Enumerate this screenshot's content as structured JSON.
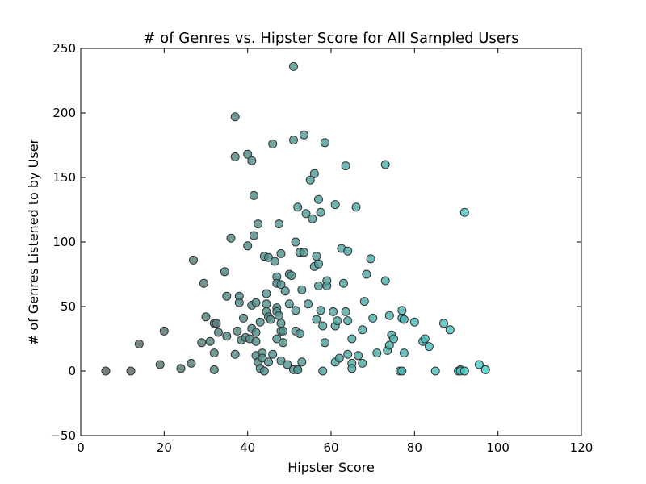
{
  "chart_data": {
    "type": "scatter",
    "title": "# of Genres vs. Hipster Score for All Sampled Users",
    "xlabel": "Hipster Score",
    "ylabel": "# of Genres Listened to by User",
    "xlim": [
      0,
      120
    ],
    "ylim": [
      -50,
      250
    ],
    "x_ticks": [
      0,
      20,
      40,
      60,
      80,
      100,
      120
    ],
    "y_ticks": [
      -50,
      0,
      50,
      100,
      150,
      200,
      250
    ],
    "x_tick_labels": [
      "0",
      "20",
      "40",
      "60",
      "80",
      "100",
      "120"
    ],
    "y_tick_labels": [
      "−50",
      "0",
      "50",
      "100",
      "150",
      "200",
      "250"
    ],
    "grid": false,
    "legend": "none",
    "colors": {
      "low": "#555f5c",
      "high": "#44ccc8",
      "edge": "#333333"
    },
    "points": [
      [
        6,
        0
      ],
      [
        12,
        0
      ],
      [
        14,
        21
      ],
      [
        19,
        5
      ],
      [
        20,
        31
      ],
      [
        24,
        2
      ],
      [
        26.5,
        6
      ],
      [
        27,
        86
      ],
      [
        29,
        22
      ],
      [
        29.5,
        68
      ],
      [
        30,
        42
      ],
      [
        31,
        23
      ],
      [
        32,
        14
      ],
      [
        32,
        1
      ],
      [
        32,
        37
      ],
      [
        32.5,
        37
      ],
      [
        33,
        30
      ],
      [
        34.5,
        77
      ],
      [
        35,
        58
      ],
      [
        35,
        27
      ],
      [
        36,
        103
      ],
      [
        37,
        197
      ],
      [
        37,
        166
      ],
      [
        37,
        13
      ],
      [
        37.5,
        31
      ],
      [
        38,
        58
      ],
      [
        38,
        53
      ],
      [
        38.5,
        24
      ],
      [
        39,
        41
      ],
      [
        39.5,
        26
      ],
      [
        40,
        97
      ],
      [
        40,
        168
      ],
      [
        40.5,
        25
      ],
      [
        41,
        163
      ],
      [
        41,
        51
      ],
      [
        41,
        33
      ],
      [
        41.5,
        136
      ],
      [
        41.5,
        105
      ],
      [
        42,
        53
      ],
      [
        42,
        12
      ],
      [
        42,
        30
      ],
      [
        42,
        23
      ],
      [
        42.5,
        114
      ],
      [
        42.5,
        7
      ],
      [
        43,
        38
      ],
      [
        43,
        2
      ],
      [
        43.5,
        14
      ],
      [
        43.5,
        10
      ],
      [
        44,
        89
      ],
      [
        44,
        0
      ],
      [
        44.5,
        46
      ],
      [
        44.5,
        60
      ],
      [
        44.5,
        52
      ],
      [
        45,
        88
      ],
      [
        45,
        42
      ],
      [
        45,
        7
      ],
      [
        45.5,
        40
      ],
      [
        46,
        176
      ],
      [
        46,
        13
      ],
      [
        46.5,
        85
      ],
      [
        47,
        73
      ],
      [
        47,
        68
      ],
      [
        47,
        49
      ],
      [
        47,
        46
      ],
      [
        47,
        25
      ],
      [
        47.5,
        114
      ],
      [
        47.5,
        43
      ],
      [
        48,
        91
      ],
      [
        48,
        67
      ],
      [
        48,
        37
      ],
      [
        48,
        31
      ],
      [
        48,
        8
      ],
      [
        48.5,
        31
      ],
      [
        48.5,
        22
      ],
      [
        49,
        62
      ],
      [
        49.5,
        5
      ],
      [
        50,
        75
      ],
      [
        50,
        52
      ],
      [
        50.5,
        74
      ],
      [
        51,
        236
      ],
      [
        51,
        179
      ],
      [
        51,
        1
      ],
      [
        51.5,
        100
      ],
      [
        51.5,
        47
      ],
      [
        51.5,
        31
      ],
      [
        52,
        127
      ],
      [
        52,
        1
      ],
      [
        52,
        1
      ],
      [
        52.5,
        92
      ],
      [
        52.5,
        29
      ],
      [
        53,
        63
      ],
      [
        53,
        7
      ],
      [
        53.5,
        183
      ],
      [
        53.5,
        92
      ],
      [
        54,
        122
      ],
      [
        54.5,
        52
      ],
      [
        55,
        148
      ],
      [
        55.5,
        118
      ],
      [
        56,
        153
      ],
      [
        56,
        81
      ],
      [
        56.5,
        89
      ],
      [
        56.5,
        40
      ],
      [
        57,
        133
      ],
      [
        57,
        83
      ],
      [
        57,
        66
      ],
      [
        57.5,
        47
      ],
      [
        57.5,
        123
      ],
      [
        58,
        35
      ],
      [
        58,
        0
      ],
      [
        58.5,
        177
      ],
      [
        58.5,
        22
      ],
      [
        59,
        70
      ],
      [
        59,
        66
      ],
      [
        60.5,
        46
      ],
      [
        61,
        129
      ],
      [
        61,
        35
      ],
      [
        61,
        7
      ],
      [
        61.5,
        39
      ],
      [
        62,
        10
      ],
      [
        62.5,
        95
      ],
      [
        63,
        68
      ],
      [
        63.5,
        46
      ],
      [
        63.5,
        159
      ],
      [
        64,
        39
      ],
      [
        64,
        93
      ],
      [
        64,
        13
      ],
      [
        65,
        25
      ],
      [
        65,
        6
      ],
      [
        65,
        2
      ],
      [
        66,
        127
      ],
      [
        66.5,
        12
      ],
      [
        67.5,
        32
      ],
      [
        67.5,
        6
      ],
      [
        68,
        54
      ],
      [
        68.5,
        75
      ],
      [
        69.5,
        87
      ],
      [
        70,
        41
      ],
      [
        71,
        14
      ],
      [
        73,
        160
      ],
      [
        73,
        70
      ],
      [
        73.5,
        16
      ],
      [
        74,
        43
      ],
      [
        74,
        20
      ],
      [
        74.5,
        28
      ],
      [
        75,
        25
      ],
      [
        76.5,
        0
      ],
      [
        77,
        0
      ],
      [
        77,
        41
      ],
      [
        77,
        47
      ],
      [
        77.5,
        14
      ],
      [
        77.5,
        40
      ],
      [
        80,
        38
      ],
      [
        82,
        23
      ],
      [
        82.5,
        25
      ],
      [
        83.5,
        19
      ],
      [
        85,
        0
      ],
      [
        87,
        37
      ],
      [
        88.5,
        32
      ],
      [
        90.5,
        0
      ],
      [
        91,
        1
      ],
      [
        91,
        0
      ],
      [
        92,
        0
      ],
      [
        92,
        123
      ],
      [
        95.5,
        5
      ],
      [
        97,
        1
      ]
    ]
  }
}
